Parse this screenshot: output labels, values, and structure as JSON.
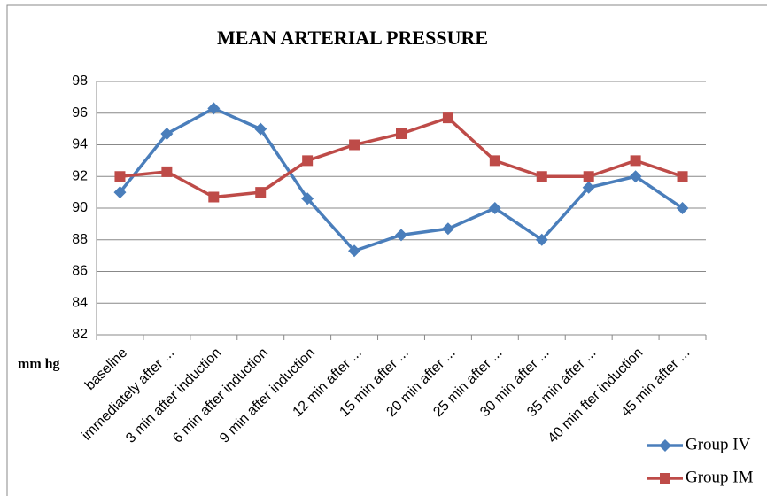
{
  "chart_data": {
    "type": "line",
    "title": "MEAN ARTERIAL PRESSURE",
    "y_label": "mm hg",
    "categories": [
      "baseline",
      "immediately after ...",
      "3 min after induction",
      "6 min after induction",
      "9 min after induction",
      "12 min after ...",
      "15 min after ...",
      "20 min after ...",
      "25 min after ...",
      "30 min after ...",
      "35 min after ...",
      "40 min fter induction",
      "45 min after ..."
    ],
    "series": [
      {
        "name": "Group IV",
        "color": "#4a7ebb",
        "marker": "diamond",
        "values": [
          91,
          94.7,
          96.3,
          95,
          90.6,
          87.3,
          88.3,
          88.7,
          90,
          88,
          91.3,
          92,
          90
        ]
      },
      {
        "name": "Group IM",
        "color": "#be4b48",
        "marker": "square",
        "values": [
          92,
          92.3,
          90.7,
          91,
          93,
          94,
          94.7,
          95.7,
          93,
          92,
          92,
          93,
          92
        ]
      }
    ],
    "ylim": [
      82,
      98
    ],
    "yticks": [
      82,
      84,
      86,
      88,
      90,
      92,
      94,
      96,
      98
    ],
    "grid": true,
    "legend": "bottom-right"
  }
}
